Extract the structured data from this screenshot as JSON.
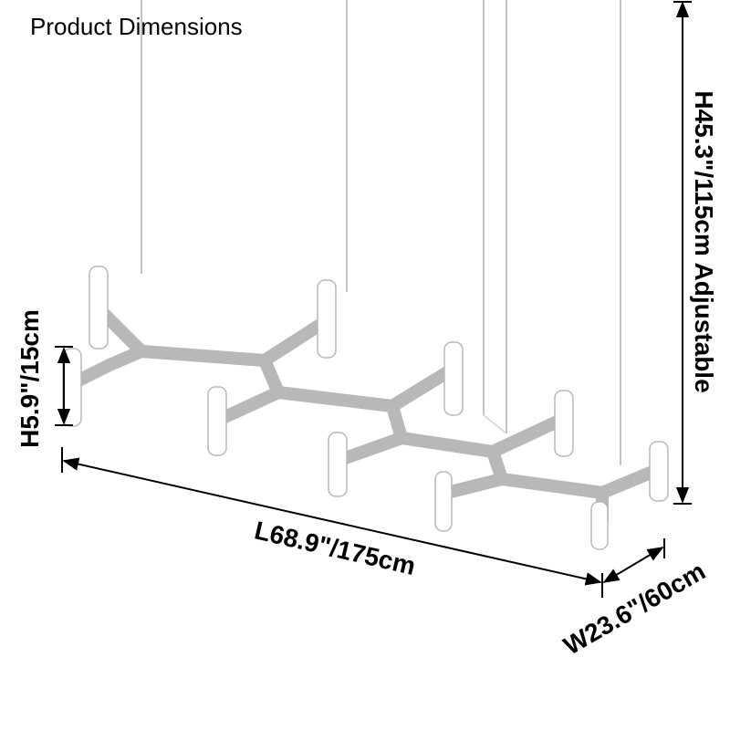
{
  "title": "Product Dimensions",
  "dimensions": {
    "overall_height": "H45.3\"/115cm Adjustable",
    "fixture_height": "H5.9\"/15cm",
    "length": "L68.9\"/175cm",
    "width": "W23.6\"/60cm"
  },
  "colors": {
    "fixture": "#ffffff",
    "outline": "#b8b8b8",
    "dimension_line": "#000000"
  }
}
